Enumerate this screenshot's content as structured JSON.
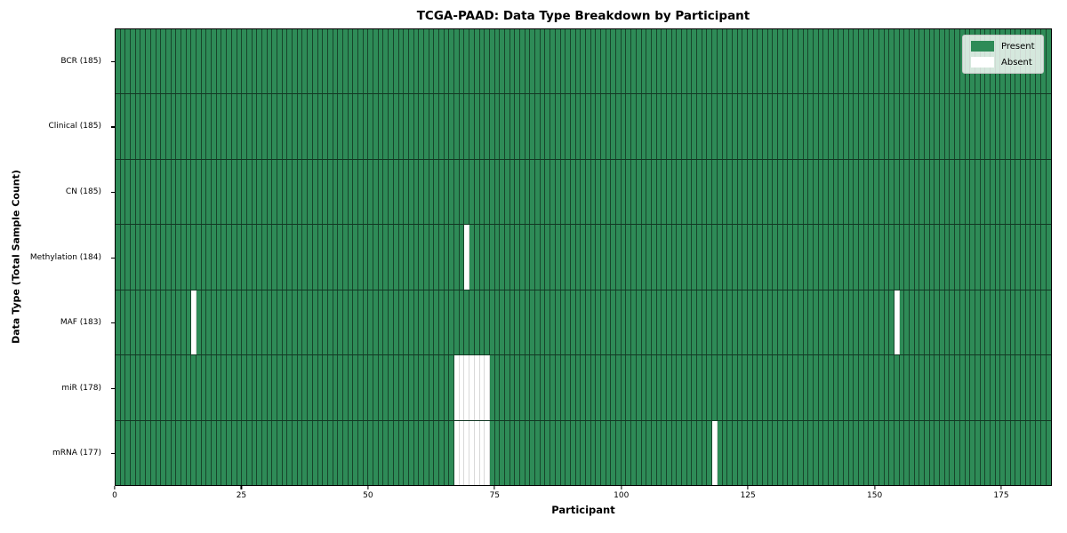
{
  "chart_data": {
    "type": "heatmap",
    "title": "TCGA-PAAD: Data Type Breakdown by Participant",
    "xlabel": "Participant",
    "ylabel": "Data Type (Total Sample Count)",
    "x_ticks": [
      0,
      25,
      50,
      75,
      100,
      125,
      150,
      175
    ],
    "x_range": [
      0,
      185
    ],
    "n_participants": 185,
    "grid": "cell-borders",
    "legend_position": "upper right",
    "legend": [
      {
        "label": "Present",
        "color": "#2e8b57"
      },
      {
        "label": "Absent",
        "color": "#ffffff"
      }
    ],
    "rows": [
      {
        "label": "BCR (185)",
        "data_type": "BCR",
        "total": 185,
        "absent_participants": []
      },
      {
        "label": "Clinical (185)",
        "data_type": "Clinical",
        "total": 185,
        "absent_participants": []
      },
      {
        "label": "CN (185)",
        "data_type": "CN",
        "total": 185,
        "absent_participants": []
      },
      {
        "label": "Methylation (184)",
        "data_type": "Methylation",
        "total": 184,
        "absent_participants": [
          69
        ]
      },
      {
        "label": "MAF (183)",
        "data_type": "MAF",
        "total": 183,
        "absent_participants": [
          15,
          154
        ]
      },
      {
        "label": "miR (178)",
        "data_type": "miR",
        "total": 178,
        "absent_participants": [
          67,
          68,
          69,
          70,
          71,
          72,
          73
        ]
      },
      {
        "label": "mRNA (177)",
        "data_type": "mRNA",
        "total": 177,
        "absent_participants": [
          67,
          68,
          69,
          70,
          71,
          72,
          73,
          118
        ]
      }
    ],
    "colors": {
      "present": "#2e8b57",
      "absent": "#ffffff",
      "cell_edge": "rgba(0,0,0,0.5)",
      "absent_cell_edge": "rgba(0,0,0,0.15)",
      "row_divider": "rgba(0,0,0,0.6)",
      "spine": "#000000",
      "legend_border": "#c8c8c8"
    }
  }
}
